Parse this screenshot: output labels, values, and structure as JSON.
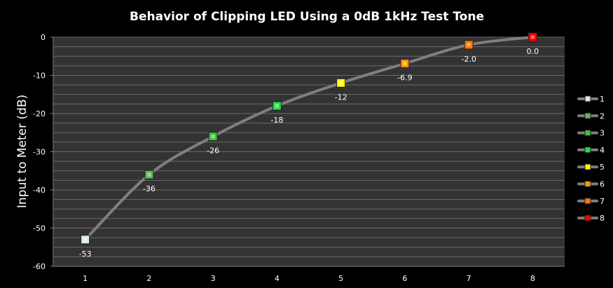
{
  "chart_data": {
    "type": "line",
    "title": "Behavior of Clipping LED Using a 0dB 1kHz Test Tone",
    "xlabel": "",
    "ylabel": "Input to Meter (dB)",
    "x": [
      1,
      2,
      3,
      4,
      5,
      6,
      7,
      8
    ],
    "values": [
      -53,
      -36,
      -26,
      -18,
      -12,
      -6.9,
      -2.0,
      0.0
    ],
    "data_labels": [
      "-53",
      "-36",
      "-26",
      "-18",
      "-12",
      "-6.9",
      "-2.0",
      "0.0"
    ],
    "x_tick_labels": [
      "1",
      "2",
      "3",
      "4",
      "5",
      "6",
      "7",
      "8"
    ],
    "y_tick_labels": [
      "0",
      "-10",
      "-20",
      "-30",
      "-40",
      "-50",
      "-60"
    ],
    "y_ticks": [
      0,
      -10,
      -20,
      -30,
      -40,
      -50,
      -60
    ],
    "ylim": [
      -60,
      0
    ],
    "xlim": [
      0.5,
      8.5
    ],
    "grid": true,
    "legend_position": "right",
    "legend_entries": [
      "1",
      "2",
      "3",
      "4",
      "5",
      "6",
      "7",
      "8"
    ],
    "point_colors": [
      "#d8f0d8",
      "#5cb85c",
      "#3fbf3f",
      "#22dd44",
      "#ffff00",
      "#ff9900",
      "#ff7700",
      "#ff0000"
    ],
    "line_color": "#7f7f7f",
    "plot_background": "#333333",
    "gridline_color": "#6a6a6a"
  }
}
